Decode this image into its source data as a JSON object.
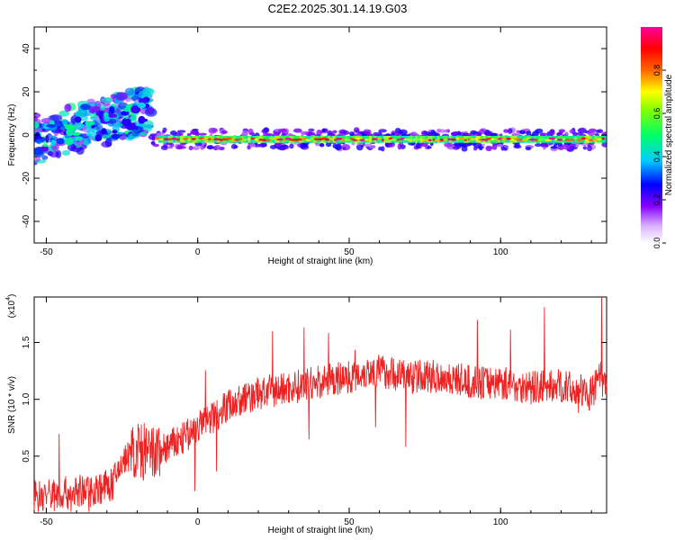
{
  "title": "C2E2.2025.301.14.19.G03",
  "colors": {
    "snr_line": "#ee2222",
    "background": "#ffffff",
    "axes": "#000000"
  },
  "chart_data": [
    {
      "type": "heatmap",
      "xlabel": "Height of straight line (km)",
      "ylabel": "Frequency (Hz)",
      "xlim": [
        -54,
        135
      ],
      "ylim": [
        -50,
        50
      ],
      "x_ticks": [
        "-50",
        "0",
        "50",
        "100"
      ],
      "y_ticks": [
        "40",
        "20",
        "0",
        "-20",
        "-40"
      ],
      "grid": false,
      "colorbar": {
        "label": "Normalized spectral amplitude",
        "range": [
          0,
          1
        ],
        "ticks": [
          "0.0",
          "0.2",
          "0.4",
          "0.6",
          "0.8"
        ],
        "colormap": [
          "#ffffff",
          "#8800ff",
          "#0000ff",
          "#00ccff",
          "#00ff66",
          "#ffff00",
          "#ff6600",
          "#ff0000",
          "#ff00aa"
        ]
      },
      "features": [
        {
          "description_x_range": [
            -54,
            -15
          ],
          "frequency_range": [
            -10,
            15
          ],
          "trend": "rising from about -2 Hz to 12 Hz"
        },
        {
          "description_x_range": [
            -15,
            135
          ],
          "frequency_center": -2,
          "frequency_spread": 4,
          "peak_amplitude": 1.0
        }
      ]
    },
    {
      "type": "line",
      "xlabel": "Height of straight line (km)",
      "ylabel": "SNR (10 * v/v)",
      "y_multiplier": "(x10",
      "y_multiplier_exp": "4",
      "xlim": [
        -54,
        135
      ],
      "ylim": [
        0,
        1.9
      ],
      "x_ticks": [
        "-50",
        "0",
        "50",
        "100"
      ],
      "y_ticks": [
        "0.5",
        "1.0",
        "1.5"
      ],
      "grid": false,
      "series": [
        {
          "anchors_x": [
            -54,
            -45,
            -35,
            -28,
            -25,
            -20,
            -15,
            -10,
            -5,
            0,
            5,
            10,
            15,
            20,
            30,
            40,
            50,
            57,
            60,
            70,
            80,
            90,
            100,
            110,
            120,
            125,
            130,
            133,
            135
          ],
          "anchors_y": [
            0.15,
            0.17,
            0.2,
            0.25,
            0.45,
            0.55,
            0.5,
            0.58,
            0.65,
            0.75,
            0.85,
            0.95,
            1.0,
            1.05,
            1.1,
            1.15,
            1.2,
            1.25,
            1.25,
            1.2,
            1.2,
            1.15,
            1.15,
            1.1,
            1.12,
            1.08,
            1.05,
            1.2,
            1.1
          ],
          "noise_amplitude": 0.15
        }
      ]
    }
  ]
}
